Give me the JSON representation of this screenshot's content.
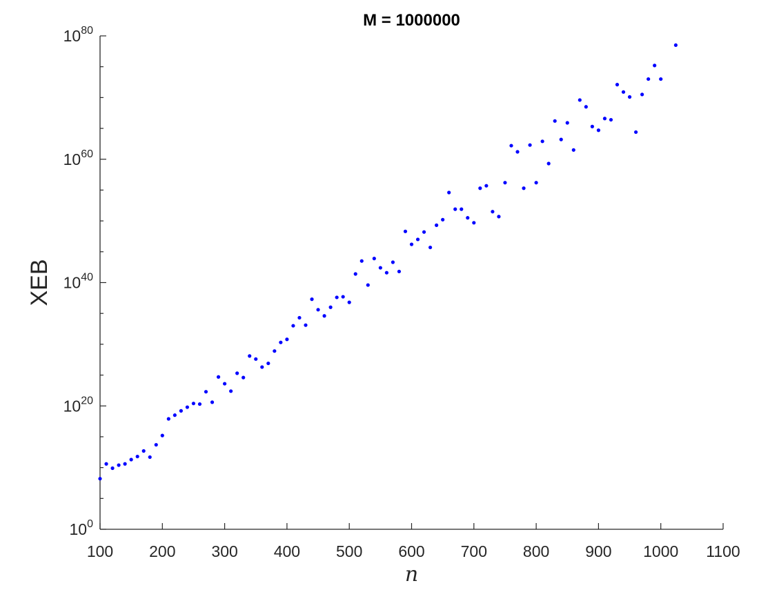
{
  "chart_data": {
    "type": "scatter",
    "title": "M = 1000000",
    "xlabel": "n",
    "ylabel": "XEB",
    "xlim": [
      100,
      1100
    ],
    "ylim_exponent": [
      0,
      80
    ],
    "y_scale": "log",
    "grid": false,
    "x_ticks": [
      "100",
      "200",
      "300",
      "400",
      "500",
      "600",
      "700",
      "800",
      "900",
      "1000",
      "1100"
    ],
    "y_ticks": [
      {
        "base": "10",
        "exp": "0",
        "value": 0
      },
      {
        "base": "10",
        "exp": "20",
        "value": 20
      },
      {
        "base": "10",
        "exp": "40",
        "value": 40
      },
      {
        "base": "10",
        "exp": "60",
        "value": 60
      },
      {
        "base": "10",
        "exp": "80",
        "value": 80
      }
    ],
    "marker_color": "#0000ff",
    "series": [
      {
        "x": [
          100,
          110,
          120,
          130,
          140,
          150,
          160,
          170,
          180,
          190,
          200,
          210,
          220,
          230,
          240,
          250,
          260,
          270,
          280,
          290,
          300,
          310,
          320,
          330,
          340,
          350,
          360,
          370,
          380,
          390,
          400,
          410,
          420,
          430,
          440,
          450,
          460,
          470,
          480,
          490,
          500,
          510,
          520,
          530,
          540,
          550,
          560,
          570,
          580,
          590,
          600,
          610,
          620,
          630,
          640,
          650,
          660,
          670,
          680,
          690,
          700,
          710,
          720,
          730,
          740,
          750,
          760,
          770,
          780,
          790,
          800,
          810,
          820,
          830,
          840,
          850,
          860,
          870,
          880,
          890,
          900,
          910,
          920,
          930,
          940,
          950,
          960,
          970,
          980,
          990,
          1000,
          1024
        ],
        "y_log10": [
          8.2,
          10.6,
          9.9,
          10.4,
          10.6,
          11.3,
          11.8,
          12.7,
          11.7,
          13.7,
          15.2,
          17.9,
          18.5,
          19.2,
          19.8,
          20.4,
          20.3,
          22.3,
          20.6,
          24.7,
          23.6,
          22.4,
          25.3,
          24.6,
          28.1,
          27.6,
          26.3,
          26.9,
          28.9,
          30.3,
          30.8,
          33.0,
          34.3,
          33.1,
          37.3,
          35.6,
          34.6,
          36.0,
          37.6,
          37.7,
          36.8,
          41.4,
          43.5,
          39.6,
          43.9,
          42.4,
          41.6,
          43.3,
          41.8,
          48.3,
          46.2,
          47.0,
          48.2,
          45.7,
          49.3,
          50.2,
          54.6,
          51.9,
          51.9,
          50.5,
          49.7,
          55.3,
          55.7,
          51.5,
          50.7,
          56.2,
          62.2,
          61.2,
          55.3,
          62.3,
          56.2,
          62.9,
          59.3,
          66.2,
          63.2,
          65.9,
          61.5,
          69.6,
          68.5,
          65.3,
          64.7,
          66.6,
          66.4,
          72.1,
          70.9,
          70.1,
          64.4,
          70.5,
          73.0,
          75.2,
          73.0,
          78.5
        ]
      }
    ]
  }
}
